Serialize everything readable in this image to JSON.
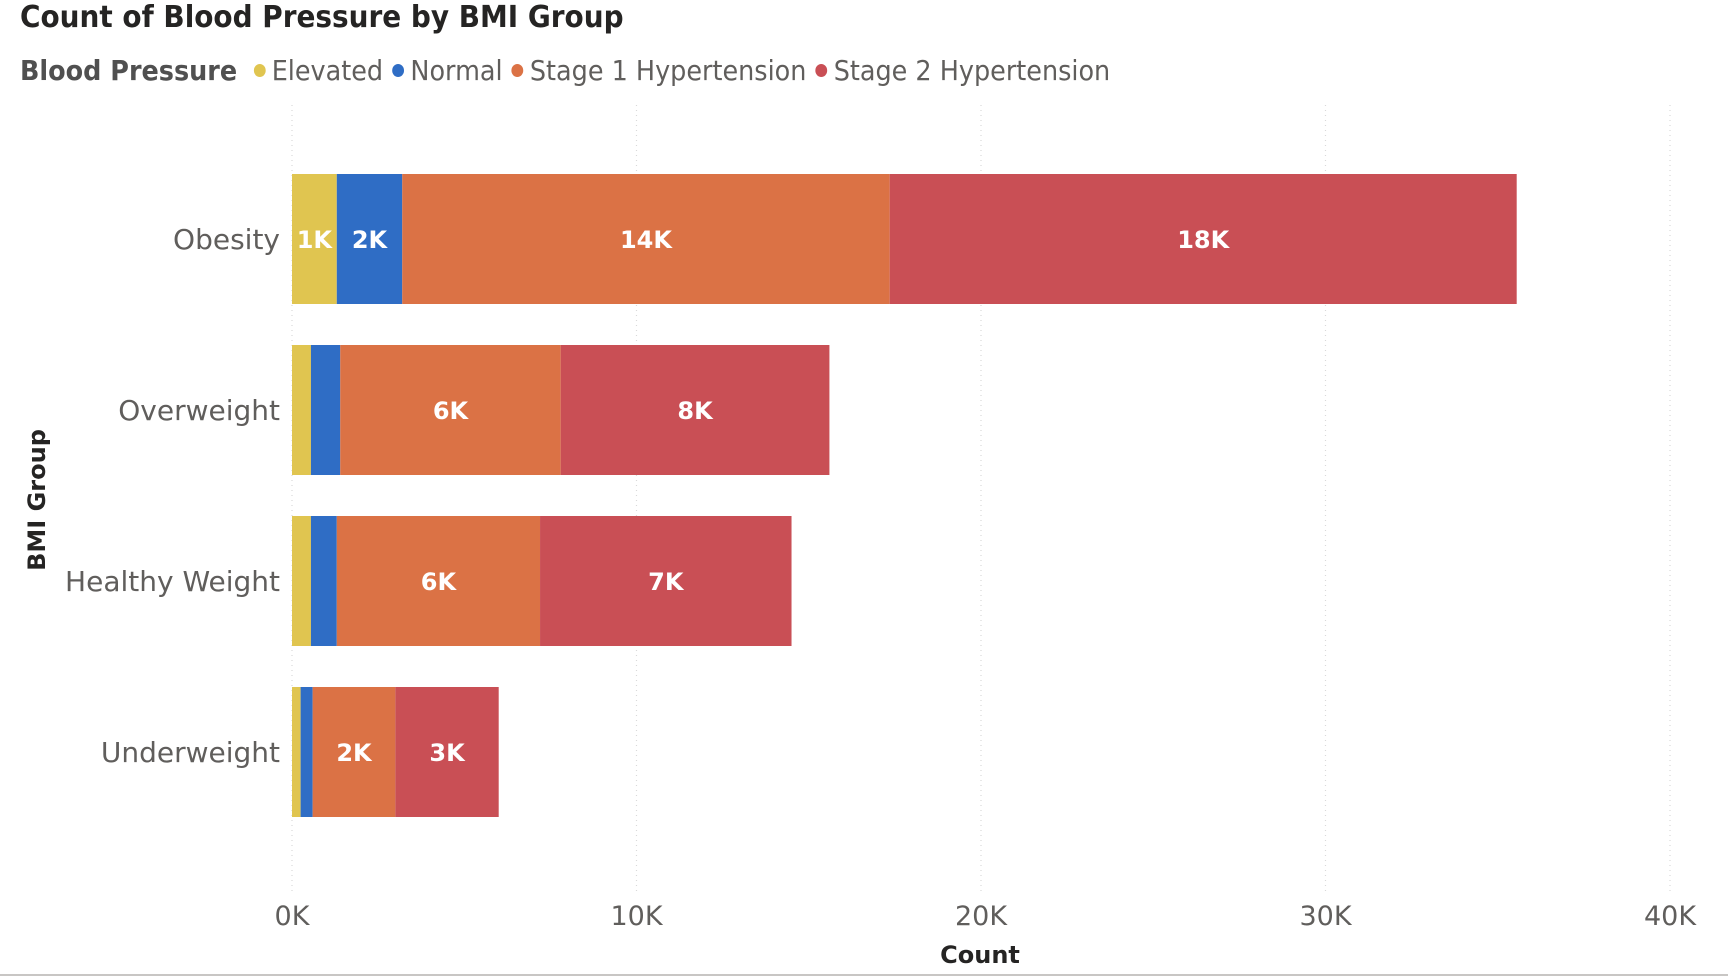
{
  "chart_data": {
    "type": "bar",
    "orientation": "horizontal",
    "stacked": true,
    "title": "Count of Blood Pressure by BMI Group",
    "xlabel": "Count",
    "ylabel": "BMI Group",
    "xlim": [
      0,
      40000
    ],
    "x_ticks": [
      {
        "value": 0,
        "label": "0K"
      },
      {
        "value": 10000,
        "label": "10K"
      },
      {
        "value": 20000,
        "label": "20K"
      },
      {
        "value": 30000,
        "label": "30K"
      },
      {
        "value": 40000,
        "label": "40K"
      }
    ],
    "grid": true,
    "legend_title": "Blood Pressure",
    "legend_position": "top-left",
    "categories": [
      "Obesity",
      "Overweight",
      "Healthy Weight",
      "Underweight"
    ],
    "series": [
      {
        "name": "Elevated",
        "color": "#e0c550",
        "values": [
          1300,
          550,
          550,
          250
        ],
        "labels": [
          "1K",
          "",
          "",
          ""
        ]
      },
      {
        "name": "Normal",
        "color": "#2f6dc5",
        "values": [
          1900,
          850,
          750,
          350
        ],
        "labels": [
          "2K",
          "",
          "",
          ""
        ]
      },
      {
        "name": "Stage 1 Hypertension",
        "color": "#db7245",
        "values": [
          14150,
          6400,
          5900,
          2400
        ],
        "labels": [
          "14K",
          "6K",
          "6K",
          "2K"
        ]
      },
      {
        "name": "Stage 2 Hypertension",
        "color": "#c94f55",
        "values": [
          18200,
          7800,
          7300,
          3000
        ],
        "labels": [
          "18K",
          "8K",
          "7K",
          "3K"
        ]
      }
    ]
  }
}
